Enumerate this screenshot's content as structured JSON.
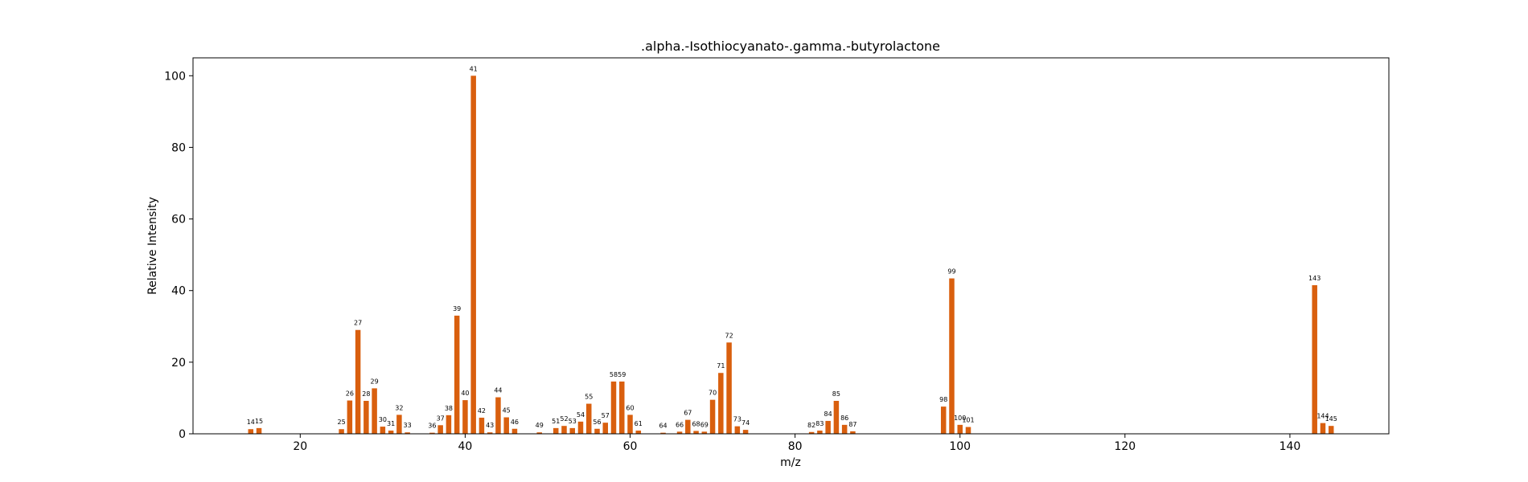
{
  "chart_data": {
    "type": "bar",
    "title": ".alpha.-Isothiocyanato-.gamma.-butyrolactone",
    "xlabel": "m/z",
    "ylabel": "Relative Intensity",
    "xlim": [
      7,
      152
    ],
    "ylim": [
      0,
      105
    ],
    "xticks": [
      20,
      40,
      60,
      80,
      100,
      120,
      140
    ],
    "yticks": [
      0,
      20,
      40,
      60,
      80,
      100
    ],
    "bar_color": "#d95f0e",
    "grid": false,
    "x": [
      14,
      15,
      25,
      26,
      27,
      28,
      29,
      30,
      31,
      32,
      33,
      36,
      37,
      38,
      39,
      40,
      41,
      42,
      43,
      44,
      45,
      46,
      49,
      51,
      52,
      53,
      54,
      55,
      56,
      57,
      58,
      59,
      60,
      61,
      64,
      66,
      67,
      68,
      69,
      70,
      71,
      72,
      73,
      74,
      82,
      83,
      84,
      85,
      86,
      87,
      98,
      99,
      100,
      101,
      143,
      144,
      145
    ],
    "values": [
      1.3,
      1.6,
      1.3,
      9.3,
      29.0,
      9.2,
      12.7,
      2.0,
      0.9,
      5.3,
      0.4,
      0.3,
      2.4,
      5.2,
      33.0,
      9.4,
      100.0,
      4.5,
      0.4,
      10.2,
      4.6,
      1.4,
      0.4,
      1.6,
      2.2,
      1.6,
      3.4,
      8.4,
      1.4,
      3.1,
      14.6,
      14.6,
      5.3,
      0.9,
      0.3,
      0.6,
      3.9,
      0.8,
      0.6,
      9.5,
      17.0,
      25.5,
      2.1,
      1.1,
      0.5,
      0.9,
      3.6,
      9.2,
      2.5,
      0.7,
      7.6,
      43.4,
      2.5,
      1.9,
      41.5,
      3.0,
      2.2
    ]
  }
}
